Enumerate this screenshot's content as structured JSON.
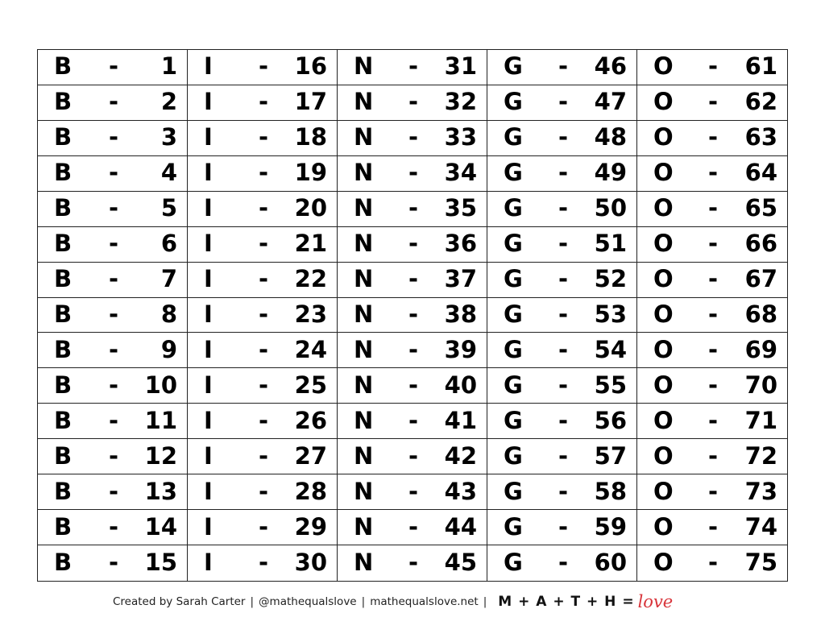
{
  "columns": [
    {
      "letter": "B",
      "dash": "-",
      "numbers": [
        "1",
        "2",
        "3",
        "4",
        "5",
        "6",
        "7",
        "8",
        "9",
        "10",
        "11",
        "12",
        "13",
        "14",
        "15"
      ]
    },
    {
      "letter": "I",
      "dash": "-",
      "numbers": [
        "16",
        "17",
        "18",
        "19",
        "20",
        "21",
        "22",
        "23",
        "24",
        "25",
        "26",
        "27",
        "28",
        "29",
        "30"
      ]
    },
    {
      "letter": "N",
      "dash": "-",
      "numbers": [
        "31",
        "32",
        "33",
        "34",
        "35",
        "36",
        "37",
        "38",
        "39",
        "40",
        "41",
        "42",
        "43",
        "44",
        "45"
      ]
    },
    {
      "letter": "G",
      "dash": "-",
      "numbers": [
        "46",
        "47",
        "48",
        "49",
        "50",
        "51",
        "52",
        "53",
        "54",
        "55",
        "56",
        "57",
        "58",
        "59",
        "60"
      ]
    },
    {
      "letter": "O",
      "dash": "-",
      "numbers": [
        "61",
        "62",
        "63",
        "64",
        "65",
        "66",
        "67",
        "68",
        "69",
        "70",
        "71",
        "72",
        "73",
        "74",
        "75"
      ]
    }
  ],
  "footer": {
    "credit": "Created by Sarah Carter",
    "handle": "@mathequalslove",
    "site": "mathequalslove.net",
    "separator": "|",
    "math": "M + A + T + H =",
    "love": "love"
  },
  "colors": {
    "love": "#d8343a",
    "text": "#000000"
  }
}
